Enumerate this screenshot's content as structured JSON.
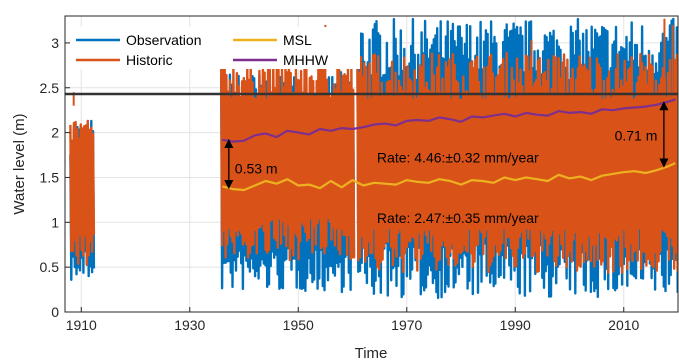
{
  "chart_data": {
    "type": "line",
    "xlabel": "Time",
    "ylabel": "Water level (m)",
    "xlim": [
      1907,
      2020
    ],
    "ylim": [
      0,
      3.3
    ],
    "xticks": [
      1910,
      1930,
      1950,
      1970,
      1990,
      2010
    ],
    "yticks": [
      0,
      0.5,
      1,
      1.5,
      2,
      2.5,
      3
    ],
    "grid": true,
    "legend_position": "top-left",
    "legend": [
      "Observation",
      "Historic",
      "MSL",
      "MHHW"
    ],
    "series": [
      {
        "name": "Observation",
        "color": "#0072BD",
        "segments": [
          {
            "x_start": 1908.0,
            "x_end": 1912.4,
            "min": 0.33,
            "max": 2.16
          },
          {
            "x_start": 1935.8,
            "x_end": 1960.3,
            "min": 0.22,
            "max": 2.68
          },
          {
            "x_start": 1960.9,
            "x_end": 2020.0,
            "min": 0.15,
            "max": 3.27
          }
        ]
      },
      {
        "name": "Historic",
        "color": "#D95319",
        "segments": [
          {
            "x_start": 1908.0,
            "x_end": 1912.4,
            "min": 0.33,
            "max": 2.45
          },
          {
            "x_start": 1935.8,
            "x_end": 1960.3,
            "min": 0.32,
            "max": 3.2
          },
          {
            "x_start": 1960.9,
            "x_end": 2020.0,
            "min": 0.15,
            "max": 3.27
          }
        ],
        "peaks": [
          {
            "x": 1908.6,
            "y": 2.45
          },
          {
            "x": 1955.0,
            "y": 3.2
          },
          {
            "x": 1993.0,
            "y": 3.03
          },
          {
            "x": 1997.5,
            "y": 2.85
          },
          {
            "x": 2017.5,
            "y": 3.27
          },
          {
            "x": 2019.0,
            "y": 3.2
          }
        ]
      },
      {
        "name": "MSL",
        "color": "#EDB120",
        "x": [
          1936,
          1938,
          1940,
          1942,
          1944,
          1946,
          1948,
          1950,
          1952,
          1954,
          1956,
          1958,
          1960,
          1962,
          1964,
          1966,
          1968,
          1970,
          1972,
          1974,
          1976,
          1978,
          1980,
          1982,
          1984,
          1986,
          1988,
          1990,
          1992,
          1994,
          1996,
          1998,
          2000,
          2002,
          2004,
          2006,
          2008,
          2010,
          2012,
          2014,
          2016,
          2018,
          2019.5
        ],
        "values": [
          1.4,
          1.37,
          1.36,
          1.41,
          1.46,
          1.43,
          1.48,
          1.41,
          1.42,
          1.38,
          1.46,
          1.39,
          1.47,
          1.41,
          1.44,
          1.43,
          1.42,
          1.47,
          1.45,
          1.44,
          1.48,
          1.46,
          1.42,
          1.47,
          1.46,
          1.44,
          1.5,
          1.47,
          1.5,
          1.48,
          1.46,
          1.53,
          1.49,
          1.51,
          1.47,
          1.52,
          1.54,
          1.56,
          1.57,
          1.55,
          1.58,
          1.62,
          1.66
        ]
      },
      {
        "name": "MHHW",
        "color": "#7E2F8E",
        "x": [
          1936,
          1938,
          1940,
          1942,
          1944,
          1946,
          1948,
          1950,
          1952,
          1954,
          1956,
          1958,
          1960,
          1962,
          1964,
          1966,
          1968,
          1970,
          1972,
          1974,
          1976,
          1978,
          1980,
          1982,
          1984,
          1986,
          1988,
          1990,
          1992,
          1994,
          1996,
          1998,
          2000,
          2002,
          2004,
          2006,
          2008,
          2010,
          2012,
          2014,
          2016,
          2018,
          2019.5
        ],
        "values": [
          1.92,
          1.9,
          1.91,
          1.97,
          1.99,
          1.95,
          2.02,
          2.0,
          1.98,
          2.04,
          2.02,
          2.05,
          2.04,
          2.06,
          2.09,
          2.1,
          2.08,
          2.13,
          2.14,
          2.13,
          2.17,
          2.15,
          2.12,
          2.18,
          2.17,
          2.19,
          2.21,
          2.18,
          2.22,
          2.2,
          2.19,
          2.24,
          2.22,
          2.23,
          2.21,
          2.26,
          2.25,
          2.27,
          2.28,
          2.29,
          2.31,
          2.34,
          2.37
        ]
      }
    ],
    "reference_line": {
      "y": 2.43,
      "color": "#333333"
    },
    "annotations": [
      {
        "text": "0.53 m",
        "x_arrow": 1937.2,
        "y_from": 1.92,
        "y_to": 1.38,
        "text_x": 1938.3,
        "text_y": 1.6
      },
      {
        "text": "0.71 m",
        "x_arrow": 2017.4,
        "y_from": 2.34,
        "y_to": 1.62,
        "text_x": 2016.2,
        "text_y": 1.97
      },
      {
        "text": "Rate: 4.46:±0.32 mm/year",
        "x": 1964.5,
        "y": 1.72
      },
      {
        "text": "Rate: 2.47:±0.35 mm/year",
        "x": 1964.5,
        "y": 1.05
      }
    ]
  }
}
